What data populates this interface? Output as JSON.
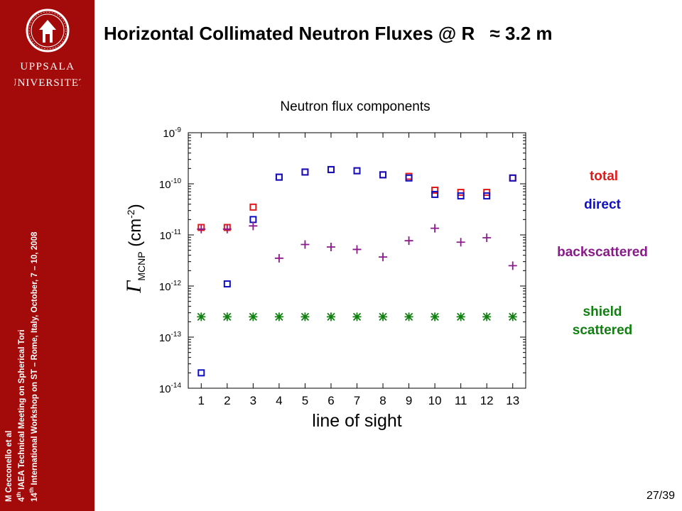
{
  "slide": {
    "title_main": "Horizontal Collimated Neutron Fluxes @ R",
    "title_symbol": "≈",
    "title_value": "3.2 m",
    "page": "27/39"
  },
  "sidebar": {
    "logo_line1": "UPPSALA",
    "logo_line2": "UNIVERSITET",
    "author": "M Cecconello et al",
    "line2_num": "4",
    "line2_sup": "th",
    "line2_text": " IAEA Technical Meeting on Spherical Tori",
    "line3_num": "14",
    "line3_sup": "th",
    "line3_text": " International Workshop on ST – Rome, Italy, October, 7 – 10, 2008"
  },
  "legend": {
    "total": "total",
    "direct": "direct",
    "backscattered": "backscattered",
    "shield_line1": "shield",
    "shield_line2": "scattered"
  },
  "colors": {
    "sidebar": "#a30b0b",
    "total": "#e01a1a",
    "direct": "#1010c0",
    "backscattered": "#8a1a8a",
    "shield": "#108010"
  },
  "chart_data": {
    "type": "scatter",
    "title": "Neutron flux components",
    "xlabel": "line of sight",
    "ylabel_symbol": "Γ",
    "ylabel_sub": "MCNP",
    "ylabel_unit": "(cm",
    "ylabel_exp": "-2",
    "ylabel_close": ")",
    "y_scale": "log",
    "ylim": [
      1e-14,
      1e-09
    ],
    "xlim": [
      0.5,
      13.5
    ],
    "x_ticks": [
      1,
      2,
      3,
      4,
      5,
      6,
      7,
      8,
      9,
      10,
      11,
      12,
      13
    ],
    "y_ticks": [
      {
        "base": "10",
        "exp": "-9",
        "value": 1e-09
      },
      {
        "base": "10",
        "exp": "-10",
        "value": 1e-10
      },
      {
        "base": "10",
        "exp": "-11",
        "value": 1e-11
      },
      {
        "base": "10",
        "exp": "-12",
        "value": 1e-12
      },
      {
        "base": "10",
        "exp": "-13",
        "value": 1e-13
      },
      {
        "base": "10",
        "exp": "-14",
        "value": 1e-14
      }
    ],
    "grid": false,
    "legend_placement": "right",
    "series": [
      {
        "name": "total",
        "marker": "square",
        "color": "#e01a1a",
        "x": [
          1,
          2,
          3,
          4,
          5,
          6,
          7,
          8,
          9,
          10,
          11,
          12,
          13
        ],
        "y": [
          1.4e-11,
          1.4e-11,
          3.5e-11,
          1.35e-10,
          1.7e-10,
          1.9e-10,
          1.8e-10,
          1.5e-10,
          1.4e-10,
          7.5e-11,
          6.8e-11,
          6.8e-11,
          1.3e-10
        ]
      },
      {
        "name": "direct",
        "marker": "square",
        "color": "#1010c0",
        "x": [
          1,
          2,
          3,
          4,
          5,
          6,
          7,
          8,
          9,
          10,
          11,
          12,
          13
        ],
        "y": [
          2e-14,
          1.1e-12,
          2e-11,
          1.35e-10,
          1.7e-10,
          1.9e-10,
          1.8e-10,
          1.5e-10,
          1.3e-10,
          6.2e-11,
          5.8e-11,
          5.8e-11,
          1.3e-10
        ]
      },
      {
        "name": "backscattered",
        "marker": "plus",
        "color": "#8a1a8a",
        "x": [
          1,
          2,
          3,
          4,
          5,
          6,
          7,
          8,
          9,
          10,
          11,
          12,
          13
        ],
        "y": [
          1.3e-11,
          1.3e-11,
          1.5e-11,
          3.5e-12,
          6.5e-12,
          5.8e-12,
          5.2e-12,
          3.7e-12,
          7.7e-12,
          1.35e-11,
          7.2e-12,
          8.8e-12,
          2.5e-12
        ]
      },
      {
        "name": "shield scattered",
        "marker": "asterisk",
        "color": "#108010",
        "x": [
          1,
          2,
          3,
          4,
          5,
          6,
          7,
          8,
          9,
          10,
          11,
          12,
          13
        ],
        "y": [
          2.5e-13,
          2.5e-13,
          2.5e-13,
          2.5e-13,
          2.5e-13,
          2.5e-13,
          2.5e-13,
          2.5e-13,
          2.5e-13,
          2.5e-13,
          2.5e-13,
          2.5e-13,
          2.5e-13
        ]
      }
    ]
  }
}
